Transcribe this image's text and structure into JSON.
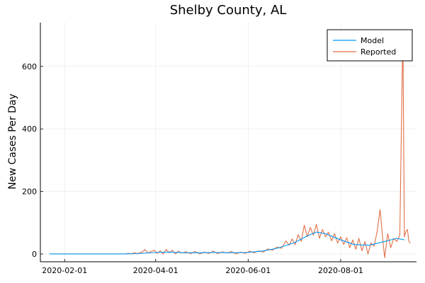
{
  "chart_data": {
    "type": "line",
    "title": "Shelby County, AL",
    "xlabel": "",
    "ylabel": "New Cases Per Day",
    "x_axis_type": "date",
    "xlim": [
      "2020-01-16",
      "2020-09-20"
    ],
    "ylim": [
      -25,
      740
    ],
    "x_ticks": [
      "2020-02-01",
      "2020-04-01",
      "2020-06-01",
      "2020-08-01"
    ],
    "y_ticks": [
      0,
      200,
      400,
      600
    ],
    "grid": true,
    "legend_position": "top-right",
    "series": [
      {
        "name": "Model",
        "color": "#009AFA",
        "points": [
          [
            "2020-01-22",
            0
          ],
          [
            "2020-02-15",
            0
          ],
          [
            "2020-03-10",
            0
          ],
          [
            "2020-03-20",
            1
          ],
          [
            "2020-04-01",
            5
          ],
          [
            "2020-04-10",
            6
          ],
          [
            "2020-04-20",
            4
          ],
          [
            "2020-05-01",
            4
          ],
          [
            "2020-05-10",
            5
          ],
          [
            "2020-05-20",
            4
          ],
          [
            "2020-06-01",
            5
          ],
          [
            "2020-06-10",
            9
          ],
          [
            "2020-06-20",
            18
          ],
          [
            "2020-07-01",
            35
          ],
          [
            "2020-07-10",
            58
          ],
          [
            "2020-07-16",
            70
          ],
          [
            "2020-07-22",
            65
          ],
          [
            "2020-08-01",
            45
          ],
          [
            "2020-08-10",
            30
          ],
          [
            "2020-08-20",
            28
          ],
          [
            "2020-08-30",
            40
          ],
          [
            "2020-09-07",
            50
          ],
          [
            "2020-09-12",
            45
          ]
        ]
      },
      {
        "name": "Reported",
        "color": "#E26F46",
        "points": [
          [
            "2020-01-22",
            0
          ],
          [
            "2020-03-12",
            0
          ],
          [
            "2020-03-14",
            2
          ],
          [
            "2020-03-16",
            0
          ],
          [
            "2020-03-18",
            4
          ],
          [
            "2020-03-20",
            1
          ],
          [
            "2020-03-23",
            6
          ],
          [
            "2020-03-25",
            14
          ],
          [
            "2020-03-27",
            3
          ],
          [
            "2020-03-29",
            8
          ],
          [
            "2020-03-31",
            12
          ],
          [
            "2020-04-02",
            2
          ],
          [
            "2020-04-04",
            10
          ],
          [
            "2020-04-06",
            0
          ],
          [
            "2020-04-08",
            15
          ],
          [
            "2020-04-10",
            4
          ],
          [
            "2020-04-12",
            12
          ],
          [
            "2020-04-14",
            0
          ],
          [
            "2020-04-16",
            9
          ],
          [
            "2020-04-18",
            3
          ],
          [
            "2020-04-21",
            7
          ],
          [
            "2020-04-24",
            1
          ],
          [
            "2020-04-27",
            8
          ],
          [
            "2020-04-30",
            0
          ],
          [
            "2020-05-03",
            6
          ],
          [
            "2020-05-06",
            2
          ],
          [
            "2020-05-09",
            9
          ],
          [
            "2020-05-12",
            1
          ],
          [
            "2020-05-15",
            7
          ],
          [
            "2020-05-18",
            3
          ],
          [
            "2020-05-21",
            8
          ],
          [
            "2020-05-24",
            0
          ],
          [
            "2020-05-27",
            6
          ],
          [
            "2020-05-30",
            2
          ],
          [
            "2020-06-02",
            9
          ],
          [
            "2020-06-05",
            4
          ],
          [
            "2020-06-08",
            10
          ],
          [
            "2020-06-11",
            6
          ],
          [
            "2020-06-14",
            16
          ],
          [
            "2020-06-17",
            12
          ],
          [
            "2020-06-20",
            22
          ],
          [
            "2020-06-23",
            18
          ],
          [
            "2020-06-26",
            42
          ],
          [
            "2020-06-28",
            28
          ],
          [
            "2020-06-30",
            48
          ],
          [
            "2020-07-02",
            30
          ],
          [
            "2020-07-04",
            62
          ],
          [
            "2020-07-06",
            40
          ],
          [
            "2020-07-08",
            92
          ],
          [
            "2020-07-10",
            55
          ],
          [
            "2020-07-12",
            85
          ],
          [
            "2020-07-14",
            60
          ],
          [
            "2020-07-16",
            95
          ],
          [
            "2020-07-18",
            50
          ],
          [
            "2020-07-20",
            78
          ],
          [
            "2020-07-22",
            55
          ],
          [
            "2020-07-24",
            70
          ],
          [
            "2020-07-26",
            42
          ],
          [
            "2020-07-28",
            65
          ],
          [
            "2020-07-30",
            35
          ],
          [
            "2020-08-01",
            55
          ],
          [
            "2020-08-03",
            30
          ],
          [
            "2020-08-05",
            52
          ],
          [
            "2020-08-07",
            20
          ],
          [
            "2020-08-09",
            45
          ],
          [
            "2020-08-11",
            15
          ],
          [
            "2020-08-13",
            50
          ],
          [
            "2020-08-15",
            10
          ],
          [
            "2020-08-17",
            40
          ],
          [
            "2020-08-19",
            0
          ],
          [
            "2020-08-21",
            35
          ],
          [
            "2020-08-23",
            25
          ],
          [
            "2020-08-25",
            70
          ],
          [
            "2020-08-27",
            142
          ],
          [
            "2020-08-29",
            35
          ],
          [
            "2020-08-30",
            -12
          ],
          [
            "2020-09-01",
            65
          ],
          [
            "2020-09-03",
            20
          ],
          [
            "2020-09-05",
            50
          ],
          [
            "2020-09-07",
            40
          ],
          [
            "2020-09-09",
            60
          ],
          [
            "2020-09-11",
            718
          ],
          [
            "2020-09-12",
            55
          ],
          [
            "2020-09-13",
            72
          ],
          [
            "2020-09-14",
            78
          ],
          [
            "2020-09-15",
            40
          ],
          [
            "2020-09-16",
            35
          ]
        ]
      }
    ]
  }
}
